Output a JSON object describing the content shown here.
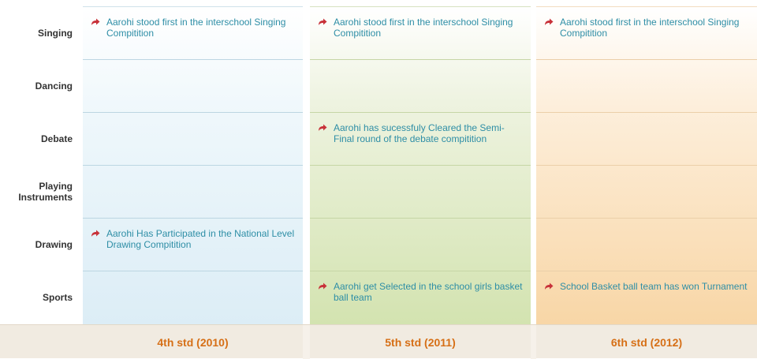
{
  "rows": [
    "Singing",
    "Dancing",
    "Debate",
    "Playing Instruments",
    "Drawing",
    "Sports"
  ],
  "columns": [
    {
      "label": "4th std (2010)",
      "entries": {
        "0": "Aarohi stood first in the interschool Singing Compitition",
        "4": "Aarohi Has Participated in the National Level Drawing Compitition"
      }
    },
    {
      "label": "5th std (2011)",
      "entries": {
        "0": "Aarohi stood first in the interschool Singing Compitition",
        "2": "Aarohi has sucessfuly Cleared the Semi-Final round of the debate compitition",
        "5": "Aarohi get Selected in the school girls basket ball team"
      }
    },
    {
      "label": "6th std (2012)",
      "entries": {
        "0": "Aarohi stood first in the interschool Singing Compitition",
        "5": "School Basket ball team has won Turnament"
      }
    }
  ],
  "colors": {
    "link": "#2e8ea6",
    "arrow": "#c8323a",
    "footer_text": "#d66f16"
  },
  "icons": {
    "entry_marker": "curved-arrow-icon"
  }
}
